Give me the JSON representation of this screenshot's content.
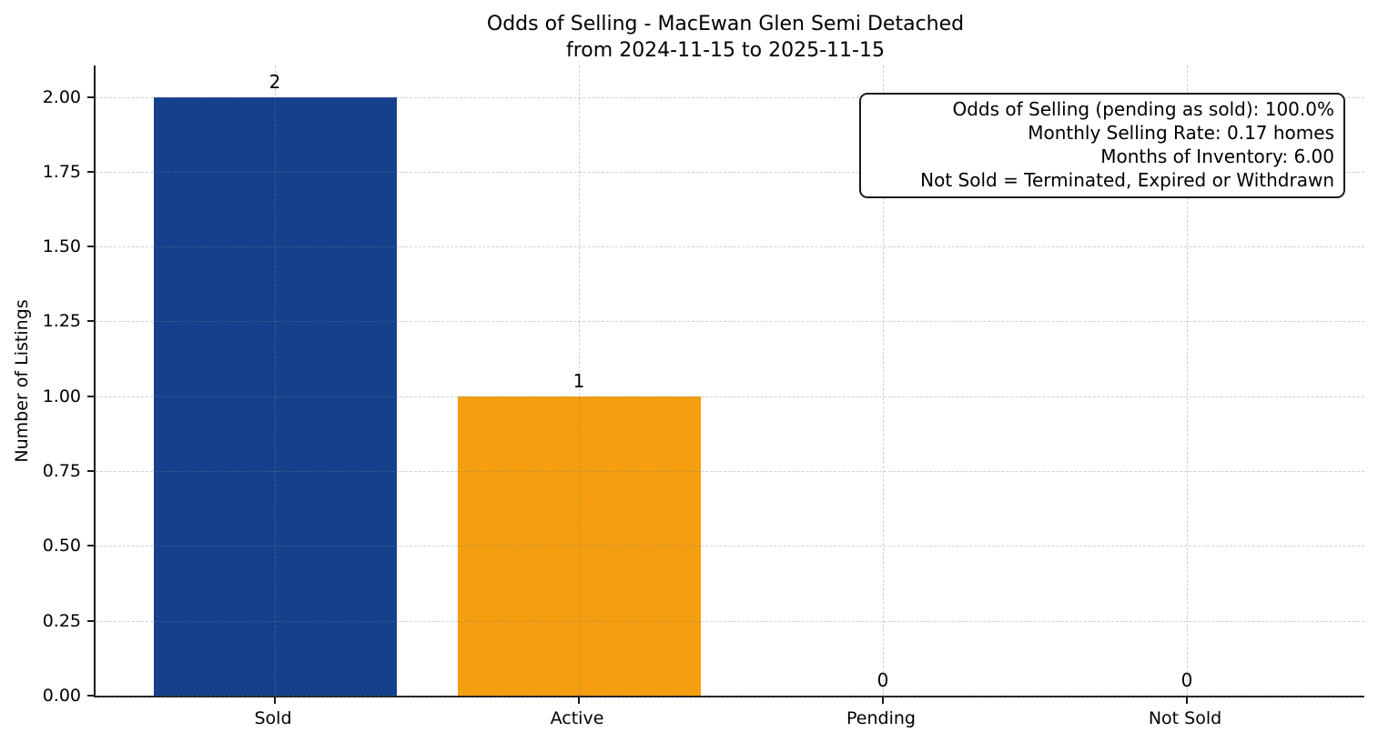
{
  "chart_data": {
    "type": "bar",
    "title": "Odds of Selling - MacEwan Glen Semi Detached",
    "subtitle": "from 2024-11-15 to 2025-11-15",
    "categories": [
      "Sold",
      "Active",
      "Pending",
      "Not Sold"
    ],
    "values": [
      2,
      1,
      0,
      0
    ],
    "value_labels": [
      "2",
      "1",
      "0",
      "0"
    ],
    "bar_colors": [
      "#15418c",
      "#f49e10",
      null,
      null
    ],
    "xlabel": "",
    "ylabel": "Number of Listings",
    "ylim": [
      0,
      2.105
    ],
    "yticks": {
      "values": [
        0,
        0.25,
        0.5,
        0.75,
        1.0,
        1.25,
        1.5,
        1.75,
        2.0
      ],
      "labels": [
        "0.00",
        "0.25",
        "0.50",
        "0.75",
        "1.00",
        "1.25",
        "1.50",
        "1.75",
        "2.00"
      ]
    },
    "grid": "dashed, both axes, drawn over bars",
    "legend_position": "none",
    "annotation_lines": [
      "Odds of Selling (pending as sold): 100.0%",
      "Monthly Selling Rate: 0.17 homes",
      "Months of Inventory: 6.00",
      "Not Sold = Terminated, Expired or Withdrawn"
    ]
  }
}
